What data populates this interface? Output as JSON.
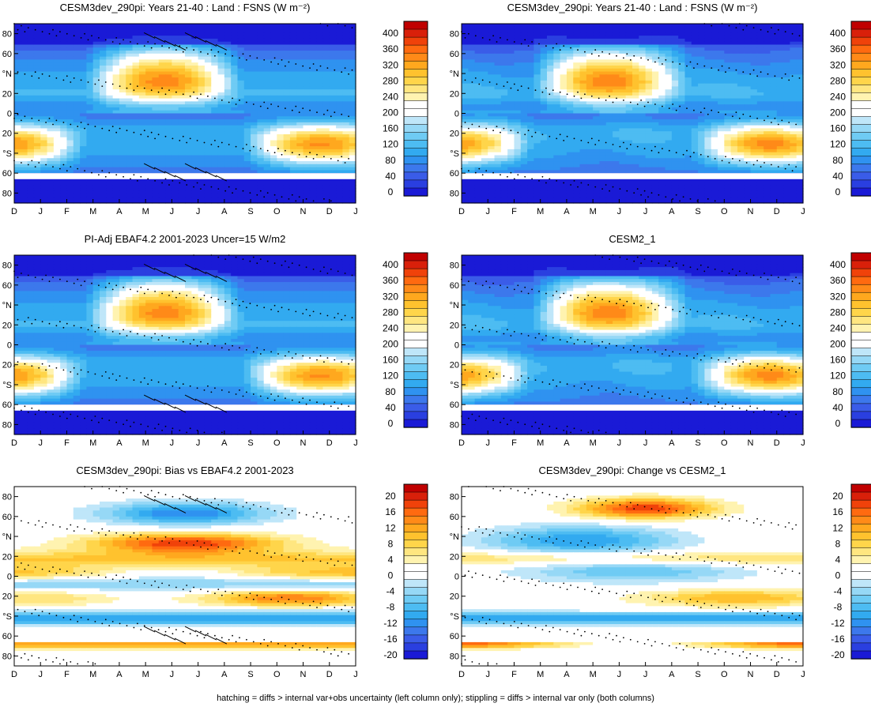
{
  "figure": {
    "footer": "hatching = diffs > internal var+obs uncertainty (left column only); stippling = diffs > internal var only (both columns)"
  },
  "chart_data": [
    {
      "type": "heatmap",
      "title": "CESM3dev_290pi: Years 21-40 : Land : FSNS (W m⁻²)",
      "x_ticks": [
        "D",
        "J",
        "F",
        "M",
        "A",
        "M",
        "J",
        "J",
        "A",
        "S",
        "O",
        "N",
        "D",
        "J"
      ],
      "y_ticks": [
        "80",
        "60",
        "°N",
        "20",
        "0",
        "20",
        "°S",
        "60",
        "80"
      ],
      "ylim": [
        -90,
        90
      ],
      "xlim": [
        0,
        13
      ],
      "colorbar_ticks": [
        "400",
        "360",
        "320",
        "280",
        "240",
        "200",
        "160",
        "120",
        "80",
        "40",
        "0"
      ],
      "colorbar_range": [
        0,
        400
      ],
      "hatching": true,
      "stippling": true,
      "field": "abs",
      "variant": 0
    },
    {
      "type": "heatmap",
      "title": "CESM3dev_290pi: Years 21-40 : Land : FSNS (W m⁻²)",
      "x_ticks": [
        "D",
        "J",
        "F",
        "M",
        "A",
        "M",
        "J",
        "J",
        "A",
        "S",
        "O",
        "N",
        "D",
        "J"
      ],
      "y_ticks": [
        "80",
        "60",
        "°N",
        "20",
        "0",
        "20",
        "°S",
        "60",
        "80"
      ],
      "ylim": [
        -90,
        90
      ],
      "xlim": [
        0,
        13
      ],
      "colorbar_ticks": [
        "400",
        "360",
        "320",
        "280",
        "240",
        "200",
        "160",
        "120",
        "80",
        "40",
        "0"
      ],
      "colorbar_range": [
        0,
        400
      ],
      "hatching": false,
      "stippling": true,
      "field": "abs",
      "variant": 1
    },
    {
      "type": "heatmap",
      "title": "PI-Adj EBAF4.2 2001-2023 Uncer=15 W/m2",
      "x_ticks": [
        "D",
        "J",
        "F",
        "M",
        "A",
        "M",
        "J",
        "J",
        "A",
        "S",
        "O",
        "N",
        "D",
        "J"
      ],
      "y_ticks": [
        "80",
        "60",
        "°N",
        "20",
        "0",
        "20",
        "°S",
        "60",
        "80"
      ],
      "ylim": [
        -90,
        90
      ],
      "xlim": [
        0,
        13
      ],
      "colorbar_ticks": [
        "400",
        "360",
        "320",
        "280",
        "240",
        "200",
        "160",
        "120",
        "80",
        "40",
        "0"
      ],
      "colorbar_range": [
        0,
        400
      ],
      "hatching": true,
      "stippling": true,
      "field": "abs",
      "variant": 2
    },
    {
      "type": "heatmap",
      "title": "CESM2_1",
      "x_ticks": [
        "D",
        "J",
        "F",
        "M",
        "A",
        "M",
        "J",
        "J",
        "A",
        "S",
        "O",
        "N",
        "D",
        "J"
      ],
      "y_ticks": [
        "80",
        "60",
        "°N",
        "20",
        "0",
        "20",
        "°S",
        "60",
        "80"
      ],
      "ylim": [
        -90,
        90
      ],
      "xlim": [
        0,
        13
      ],
      "colorbar_ticks": [
        "400",
        "360",
        "320",
        "280",
        "240",
        "200",
        "160",
        "120",
        "80",
        "40",
        "0"
      ],
      "colorbar_range": [
        0,
        400
      ],
      "hatching": false,
      "stippling": true,
      "field": "abs",
      "variant": 3
    },
    {
      "type": "heatmap",
      "title": "CESM3dev_290pi: Bias vs EBAF4.2 2001-2023",
      "x_ticks": [
        "D",
        "J",
        "F",
        "M",
        "A",
        "M",
        "J",
        "J",
        "A",
        "S",
        "O",
        "N",
        "D",
        "J"
      ],
      "y_ticks": [
        "80",
        "60",
        "°N",
        "20",
        "0",
        "20",
        "°S",
        "60",
        "80"
      ],
      "ylim": [
        -90,
        90
      ],
      "xlim": [
        0,
        13
      ],
      "colorbar_ticks": [
        "20",
        "16",
        "12",
        "8",
        "4",
        "0",
        "-4",
        "-8",
        "-12",
        "-16",
        "-20"
      ],
      "colorbar_range": [
        -22,
        22
      ],
      "hatching": true,
      "stippling": true,
      "field": "bias",
      "variant": 4
    },
    {
      "type": "heatmap",
      "title": "CESM3dev_290pi: Change vs CESM2_1",
      "x_ticks": [
        "D",
        "J",
        "F",
        "M",
        "A",
        "M",
        "J",
        "J",
        "A",
        "S",
        "O",
        "N",
        "D",
        "J"
      ],
      "y_ticks": [
        "80",
        "60",
        "°N",
        "20",
        "0",
        "20",
        "°S",
        "60",
        "80"
      ],
      "ylim": [
        -90,
        90
      ],
      "xlim": [
        0,
        13
      ],
      "colorbar_ticks": [
        "20",
        "16",
        "12",
        "8",
        "4",
        "0",
        "-4",
        "-8",
        "-12",
        "-16",
        "-20"
      ],
      "colorbar_range": [
        -22,
        22
      ],
      "hatching": false,
      "stippling": true,
      "field": "change",
      "variant": 5
    }
  ],
  "colors": {
    "palette": [
      "#1a1ad6",
      "#2a3fe0",
      "#3a5ce8",
      "#3c78ec",
      "#2f92f0",
      "#32aaf0",
      "#4dbcf2",
      "#6fcbf4",
      "#96d8f6",
      "#bfe6f9",
      "#ffffff",
      "#ffffff",
      "#fff3b0",
      "#ffe680",
      "#ffd54a",
      "#ffc22e",
      "#ffa81e",
      "#ff8a18",
      "#ff6a10",
      "#f0420a",
      "#d9200a",
      "#c00000"
    ],
    "frame": "#000000"
  }
}
